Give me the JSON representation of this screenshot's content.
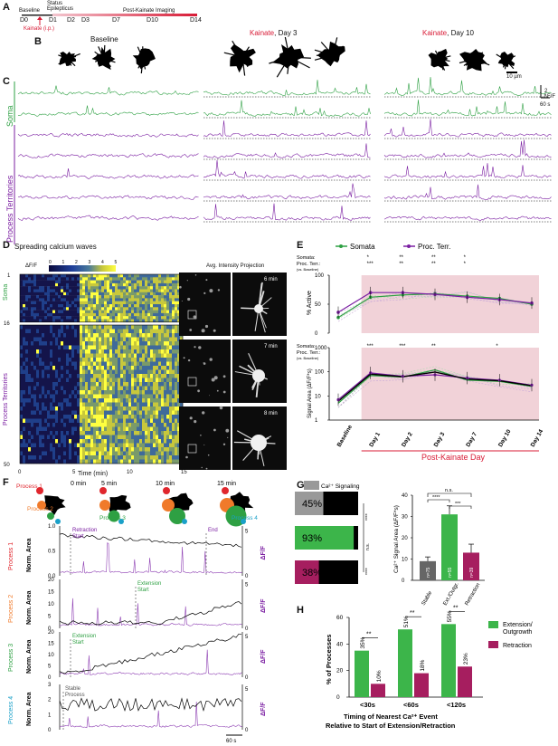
{
  "panel_letters": {
    "a": "A",
    "b": "B",
    "c": "C",
    "d": "D",
    "e": "E",
    "f": "F",
    "g": "G",
    "h": "H"
  },
  "timeline": {
    "baseline_label": "Baseline",
    "status_label": "Status\nEpilepticus",
    "post_label": "Post-Kainate Imaging",
    "days": [
      "D0",
      "D1",
      "D2",
      "D3",
      "D7",
      "D10",
      "D14"
    ],
    "kainate_label": "Kainate (i.p.)",
    "bar_colors": [
      "#f8d0d6",
      "#d81b36"
    ]
  },
  "panelB": {
    "baseline": "Baseline",
    "day3_prefix": "Kainate",
    "day3_suffix": ", Day 3",
    "day10_prefix": "Kainate",
    "day10_suffix": ", Day 10",
    "scale": "10 µm"
  },
  "panelC": {
    "soma": "Soma",
    "process": "Process Territories",
    "dff": "ΔF/F",
    "dff_scale": "2",
    "time_scale": "60 s",
    "soma_color": "#2ea043",
    "process_color": "#7b1fa2"
  },
  "panelD": {
    "title": "Spreading calcium waves",
    "cbar_label": "ΔF/F",
    "cbar_ticks": [
      "0",
      "1",
      "2",
      "3",
      "4",
      "5"
    ],
    "soma": "Soma",
    "process": "Process Territories",
    "row_top": "1",
    "row_mid": "16",
    "row_bottom": "50",
    "xticks": [
      "0",
      "5",
      "10",
      "15"
    ],
    "xlabel": "Time (min)",
    "aip": "Avg. Intensity Projection",
    "minutes": [
      "6 min",
      "7 min",
      "8 min"
    ]
  },
  "panelE": {
    "legend": [
      "Somata",
      "Proc. Terr."
    ],
    "top_ylabel": "% Active",
    "top_yticks": [
      "0",
      "50",
      "100"
    ],
    "bottom_ylabel": "Signal Area (ΔF/F*s)",
    "bottom_yticks": [
      "1",
      "10",
      "100",
      "1000"
    ],
    "sig_rows_top": [
      {
        "label": "Somata:",
        "marks": [
          "*",
          "**",
          "**",
          "*"
        ]
      },
      {
        "label": "Proc. Terr.:",
        "marks": [
          "***",
          "**",
          "**",
          "*"
        ]
      }
    ],
    "sig_rows_bottom": [
      {
        "label": "Somata:",
        "marks": [
          "***",
          "***",
          "**",
          "*"
        ]
      },
      {
        "label": "Proc. Terr.:",
        "marks": [
          "**",
          "**",
          "***",
          "**",
          "**"
        ]
      }
    ],
    "vs_baseline": "(vs. Baseline)",
    "xticks": [
      "Baseline",
      "Day 1",
      "Day 2",
      "Day 3",
      "Day 7",
      "Day 10",
      "Day 14"
    ],
    "xlabel": "Post-Kainate Day"
  },
  "panelF": {
    "times": [
      "0 min",
      "5 min",
      "10 min",
      "15 min"
    ],
    "process_labels": [
      "Process 1",
      "Process 2",
      "Process 3",
      "Process 4"
    ],
    "process_colors": [
      "#e0262d",
      "#f07a2a",
      "#2ea043",
      "#1aa0c8"
    ],
    "ylabel_left": "Norm. Area",
    "ylabel_right": "ΔF/F",
    "annotations": [
      {
        "a": "Retraction",
        "b": "Start",
        "c": "End"
      },
      {
        "a": "Extension",
        "b": "Start"
      },
      {
        "a": "Extension",
        "b": "Start"
      },
      {
        "a": "Stable",
        "b": "Process"
      }
    ],
    "left_ticks": [
      [
        "0.0",
        "0.5",
        "1.0"
      ],
      [
        "0",
        "5",
        "10",
        "15",
        "20"
      ],
      [
        "0",
        "5",
        "10",
        "15",
        "20"
      ],
      [
        "0",
        "1",
        "2",
        "3"
      ]
    ],
    "right_ticks": [
      "0",
      "5"
    ],
    "time_scale": "60 s"
  },
  "panelG": {
    "legend": "Ca²⁺ Signaling",
    "bars": [
      "45%",
      "93%",
      "38%"
    ],
    "sig": [
      "****",
      "n.s.",
      "****"
    ],
    "bar_ylabel": "Ca²⁺ Signal Area (ΔF/F*s)",
    "yticks": [
      "0",
      "10",
      "20",
      "30",
      "40"
    ],
    "categories": [
      "Stable",
      "Ext./Outgr.",
      "Retraction"
    ],
    "n_labels": [
      "n=75",
      "n=55",
      "n=39"
    ],
    "top_sig": [
      "****",
      "n.s.",
      "***"
    ],
    "chart_data": {
      "type": "bar",
      "categories": [
        "Stable",
        "Ext./Outgr.",
        "Retraction"
      ],
      "values": [
        9,
        31,
        13
      ],
      "errors": [
        2,
        4,
        4
      ],
      "ylim": [
        0,
        40
      ],
      "colors": [
        "#666666",
        "#3cb54a",
        "#a61e5f"
      ]
    }
  },
  "panelH": {
    "ylabel": "% of Processes",
    "xlabel_1": "Timing of Nearest Ca²⁺ Event",
    "xlabel_2": "Relative to Start of Extension/Retraction",
    "legend": [
      "Extension/\nOutgrowth",
      "Retraction"
    ],
    "yticks": [
      "0",
      "20",
      "40",
      "60"
    ],
    "chart_data": {
      "type": "bar",
      "categories": [
        "<30s",
        "<60s",
        "<120s"
      ],
      "series": [
        {
          "name": "Extension/ Outgrowth",
          "values": [
            35,
            51,
            55
          ],
          "labels": [
            "35%",
            "51%",
            "55%"
          ]
        },
        {
          "name": "Retraction",
          "values": [
            10,
            18,
            23
          ],
          "labels": [
            "10%",
            "18%",
            "23%"
          ]
        }
      ],
      "ylim": [
        0,
        60
      ],
      "sig": [
        "**",
        "**",
        "**"
      ]
    }
  }
}
